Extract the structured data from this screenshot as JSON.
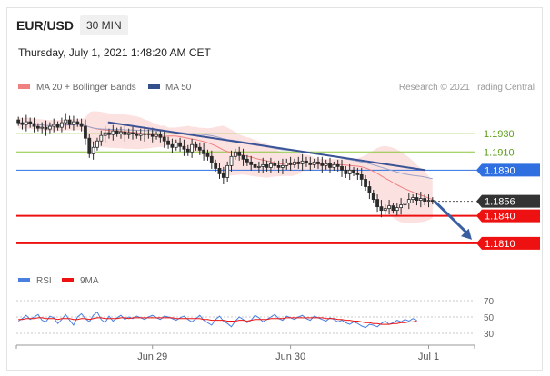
{
  "header": {
    "pair": "EUR/USD",
    "timeframe": "30 MIN",
    "datetime": "Thursday, July 1, 2021 1:48:20 AM CET"
  },
  "legend": {
    "items": [
      {
        "label": "MA 20 + Bollinger Bands",
        "color": "#f08080"
      },
      {
        "label": "MA 50",
        "color": "#34508c"
      }
    ],
    "credit": "Research © 2021 Trading Central"
  },
  "colors": {
    "candle": "#2b2b2b",
    "bollinger_fill": "#fbdcdc",
    "ma20": "#f08080",
    "ma50": "#9aa3c8",
    "trendline": "#3a5397",
    "projection_arrow": "#3a5fa0",
    "green_level": "#8cc63f",
    "blue_level": "#2f6fe0",
    "red_level": "#ee1111",
    "current_price": "#333333",
    "rsi": "#4a7fe0",
    "rsi_ma": "#ee1111"
  },
  "chart_data": [
    {
      "type": "candlestick",
      "ylim": [
        1.178,
        1.1965
      ],
      "x_ticks": [
        "Jun 29",
        "Jun 30",
        "Jul 1"
      ],
      "closes": [
        1.1942,
        1.194,
        1.1943,
        1.1941,
        1.1938,
        1.1936,
        1.1937,
        1.1935,
        1.1938,
        1.194,
        1.1937,
        1.1942,
        1.1945,
        1.194,
        1.1943,
        1.1941,
        1.1938,
        1.1925,
        1.1908,
        1.1915,
        1.1922,
        1.1928,
        1.1931,
        1.1929,
        1.1933,
        1.193,
        1.1932,
        1.1929,
        1.1931,
        1.193,
        1.1928,
        1.193,
        1.1929,
        1.193,
        1.1927,
        1.1929,
        1.1926,
        1.1922,
        1.1918,
        1.1915,
        1.192,
        1.1916,
        1.1913,
        1.191,
        1.1918,
        1.1915,
        1.1912,
        1.1908,
        1.1905,
        1.1898,
        1.1892,
        1.1886,
        1.1882,
        1.1895,
        1.1905,
        1.191,
        1.1906,
        1.1902,
        1.1899,
        1.1896,
        1.1893,
        1.1894,
        1.1896,
        1.1893,
        1.1897,
        1.1895,
        1.1893,
        1.1895,
        1.1898,
        1.1896,
        1.1899,
        1.1897,
        1.19,
        1.1898,
        1.1896,
        1.1899,
        1.1897,
        1.1895,
        1.1897,
        1.1893,
        1.1896,
        1.1894,
        1.189,
        1.1886,
        1.189,
        1.1887,
        1.1885,
        1.188,
        1.1872,
        1.1865,
        1.1858,
        1.185,
        1.1846,
        1.1848,
        1.1851,
        1.1846,
        1.1849,
        1.1852,
        1.1854,
        1.1858,
        1.186,
        1.1857,
        1.1859,
        1.1856,
        1.1857,
        1.1856
      ],
      "levels": [
        {
          "label": "1.1930",
          "value": 1.193,
          "style": "green"
        },
        {
          "label": "1.1910",
          "value": 1.191,
          "style": "green"
        },
        {
          "label": "1.1890",
          "value": 1.189,
          "style": "blue"
        },
        {
          "label": "1.1856",
          "value": 1.1856,
          "style": "current"
        },
        {
          "label": "1.1840",
          "value": 1.184,
          "style": "red"
        },
        {
          "label": "1.1810",
          "value": 1.181,
          "style": "red"
        }
      ],
      "trendline": {
        "from": [
          0.23,
          1.19425
        ],
        "to": [
          1.0,
          1.189
        ]
      },
      "projection": {
        "from": [
          0.0,
          1.1856
        ],
        "to": [
          1.0,
          1.181
        ]
      }
    },
    {
      "type": "line",
      "legend": [
        "RSI",
        "9MA"
      ],
      "ylim": [
        20,
        80
      ],
      "y_ticks": [
        70,
        50,
        30
      ],
      "rsi": [
        45,
        48,
        52,
        47,
        50,
        53,
        46,
        44,
        51,
        49,
        42,
        47,
        53,
        46,
        40,
        50,
        54,
        48,
        44,
        52,
        56,
        47,
        43,
        51,
        45,
        49,
        52,
        47,
        50,
        48,
        51,
        49,
        47,
        50,
        52,
        49,
        47,
        51,
        50,
        48,
        46,
        49,
        51,
        47,
        44,
        48,
        52,
        46,
        43,
        40,
        47,
        51,
        45,
        42,
        38,
        45,
        50,
        47,
        43,
        46,
        52,
        49,
        44,
        47,
        50,
        53,
        48,
        46,
        51,
        49,
        47,
        50,
        52,
        48,
        46,
        51,
        49,
        47,
        45,
        49,
        47,
        44,
        46,
        43,
        41,
        44,
        42,
        39,
        37,
        41,
        40,
        38,
        42,
        45,
        41,
        43,
        46,
        44,
        47,
        45,
        48,
        46
      ],
      "ma": [
        47,
        47,
        48,
        48,
        48,
        49,
        49,
        48,
        48,
        48,
        47,
        48,
        48,
        48,
        47,
        47,
        48,
        48,
        47,
        48,
        49,
        49,
        48,
        48,
        48,
        48,
        49,
        49,
        48,
        49,
        49,
        49,
        49,
        49,
        49,
        49,
        49,
        49,
        49,
        49,
        48,
        48,
        48,
        48,
        48,
        48,
        48,
        47,
        47,
        46,
        46,
        46,
        46,
        45,
        45,
        45,
        46,
        46,
        45,
        46,
        47,
        47,
        47,
        47,
        48,
        48,
        48,
        48,
        49,
        49,
        49,
        49,
        49,
        49,
        49,
        49,
        49,
        49,
        48,
        48,
        48,
        47,
        47,
        46,
        46,
        45,
        45,
        44,
        43,
        43,
        42,
        42,
        41,
        41,
        41,
        42,
        42,
        43,
        43,
        44,
        44,
        45
      ]
    }
  ]
}
